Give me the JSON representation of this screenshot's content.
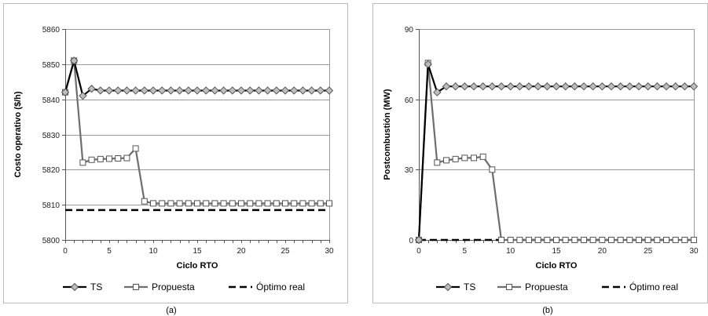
{
  "captions": [
    "(a)",
    "(b)"
  ],
  "chart_data": [
    {
      "type": "line",
      "xlabel": "Ciclo RTO",
      "ylabel": "Costo operativo ($/h)",
      "xlim": [
        0,
        30
      ],
      "ylim": [
        5800,
        5860
      ],
      "xticks": [
        0,
        5,
        10,
        15,
        20,
        25,
        30
      ],
      "yticks": [
        5800,
        5810,
        5820,
        5830,
        5840,
        5850,
        5860
      ],
      "grid": "horizontal",
      "legend": "bottom",
      "series": [
        {
          "name": "TS",
          "marker": "diamond",
          "color": "#000000",
          "x": [
            0,
            1,
            2,
            3,
            4,
            5,
            6,
            7,
            8,
            9,
            10,
            11,
            12,
            13,
            14,
            15,
            16,
            17,
            18,
            19,
            20,
            21,
            22,
            23,
            24,
            25,
            26,
            27,
            28,
            29,
            30
          ],
          "y": [
            5842,
            5851,
            5841,
            5843,
            5842.5,
            5842.5,
            5842.5,
            5842.5,
            5842.5,
            5842.5,
            5842.5,
            5842.5,
            5842.5,
            5842.5,
            5842.5,
            5842.5,
            5842.5,
            5842.5,
            5842.5,
            5842.5,
            5842.5,
            5842.5,
            5842.5,
            5842.5,
            5842.5,
            5842.5,
            5842.5,
            5842.5,
            5842.5,
            5842.5,
            5842.5
          ]
        },
        {
          "name": "Propuesta",
          "marker": "square",
          "color": "#6e6e6e",
          "x": [
            0,
            1,
            2,
            3,
            4,
            5,
            6,
            7,
            8,
            9,
            10,
            11,
            12,
            13,
            14,
            15,
            16,
            17,
            18,
            19,
            20,
            21,
            22,
            23,
            24,
            25,
            26,
            27,
            28,
            29,
            30
          ],
          "y": [
            5842,
            5851,
            5822,
            5822.8,
            5823,
            5823.1,
            5823.2,
            5823.3,
            5826,
            5811,
            5810.4,
            5810.4,
            5810.4,
            5810.4,
            5810.4,
            5810.4,
            5810.4,
            5810.4,
            5810.4,
            5810.4,
            5810.4,
            5810.4,
            5810.4,
            5810.4,
            5810.4,
            5810.4,
            5810.4,
            5810.4,
            5810.4,
            5810.4,
            5810.4
          ]
        },
        {
          "name": "Óptimo real",
          "marker": "none",
          "dash": true,
          "color": "#000000",
          "x": [
            0,
            30
          ],
          "y": [
            5808.5,
            5808.5
          ]
        }
      ]
    },
    {
      "type": "line",
      "xlabel": "Ciclo RTO",
      "ylabel": "Postcombustión (MW)",
      "xlim": [
        0,
        30
      ],
      "ylim": [
        0,
        90
      ],
      "xticks": [
        0,
        5,
        10,
        15,
        20,
        25,
        30
      ],
      "yticks": [
        0,
        30,
        60,
        90
      ],
      "grid": "horizontal",
      "legend": "bottom",
      "series": [
        {
          "name": "TS",
          "marker": "diamond",
          "color": "#000000",
          "x": [
            0,
            1,
            2,
            3,
            4,
            5,
            6,
            7,
            8,
            9,
            10,
            11,
            12,
            13,
            14,
            15,
            16,
            17,
            18,
            19,
            20,
            21,
            22,
            23,
            24,
            25,
            26,
            27,
            28,
            29,
            30
          ],
          "y": [
            0,
            75,
            63,
            65.5,
            65.5,
            65.5,
            65.5,
            65.5,
            65.5,
            65.5,
            65.5,
            65.5,
            65.5,
            65.5,
            65.5,
            65.5,
            65.5,
            65.5,
            65.5,
            65.5,
            65.5,
            65.5,
            65.5,
            65.5,
            65.5,
            65.5,
            65.5,
            65.5,
            65.5,
            65.5,
            65.5
          ]
        },
        {
          "name": "Propuesta",
          "marker": "square",
          "color": "#6e6e6e",
          "x": [
            0,
            1,
            2,
            3,
            4,
            5,
            6,
            7,
            8,
            9,
            10,
            11,
            12,
            13,
            14,
            15,
            16,
            17,
            18,
            19,
            20,
            21,
            22,
            23,
            24,
            25,
            26,
            27,
            28,
            29,
            30
          ],
          "y": [
            0,
            75.5,
            33,
            34,
            34.5,
            35,
            35,
            35.5,
            30,
            0,
            0,
            0,
            0,
            0,
            0,
            0,
            0,
            0,
            0,
            0,
            0,
            0,
            0,
            0,
            0,
            0,
            0,
            0,
            0,
            0,
            0
          ]
        },
        {
          "name": "Óptimo real",
          "marker": "none",
          "dash": true,
          "color": "#000000",
          "x": [
            0,
            30
          ],
          "y": [
            0,
            0
          ]
        }
      ]
    }
  ]
}
